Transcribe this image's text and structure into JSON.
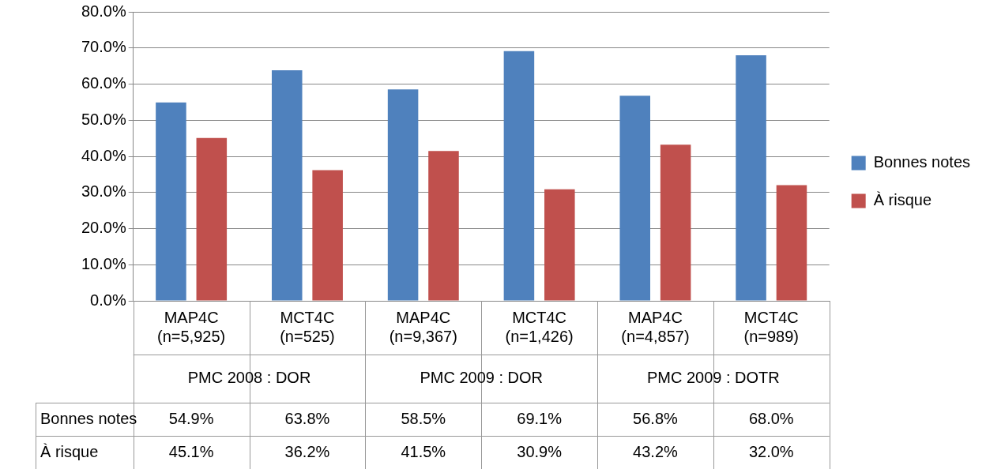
{
  "chart_data": {
    "type": "bar",
    "categories": [
      "MAP4C (n=5,925)",
      "MCT4C (n=525)",
      "MAP4C (n=9,367)",
      "MCT4C (n=1,426)",
      "MAP4C (n=4,857)",
      "MCT4C (n=989)"
    ],
    "series": [
      {
        "name": "Bonnes notes",
        "color": "#4f81bd",
        "values": [
          54.9,
          63.8,
          58.5,
          69.1,
          56.8,
          68.0
        ],
        "value_labels": [
          "54.9%",
          "63.8%",
          "58.5%",
          "69.1%",
          "56.8%",
          "68.0%"
        ]
      },
      {
        "name": "À risque",
        "color": "#c0504d",
        "values": [
          45.1,
          36.2,
          41.5,
          30.9,
          43.2,
          32.0
        ],
        "value_labels": [
          "45.1%",
          "36.2%",
          "41.5%",
          "30.9%",
          "43.2%",
          "32.0%"
        ]
      }
    ],
    "ylim": [
      0,
      80
    ],
    "yticks": [
      {
        "value": 0,
        "label": "0.0%"
      },
      {
        "value": 10,
        "label": "10.0%"
      },
      {
        "value": 20,
        "label": "20.0%"
      },
      {
        "value": 30,
        "label": "30.0%"
      },
      {
        "value": 40,
        "label": "40.0%"
      },
      {
        "value": 50,
        "label": "50.0%"
      },
      {
        "value": 60,
        "label": "60.0%"
      },
      {
        "value": 70,
        "label": "70.0%"
      },
      {
        "value": 80,
        "label": "80.0%"
      }
    ],
    "grid": "y",
    "legend": "right",
    "annotations": [
      "PMC 2008 : DOR",
      "PMC 2009 : DOR",
      "PMC 2009 : DOTR"
    ]
  }
}
